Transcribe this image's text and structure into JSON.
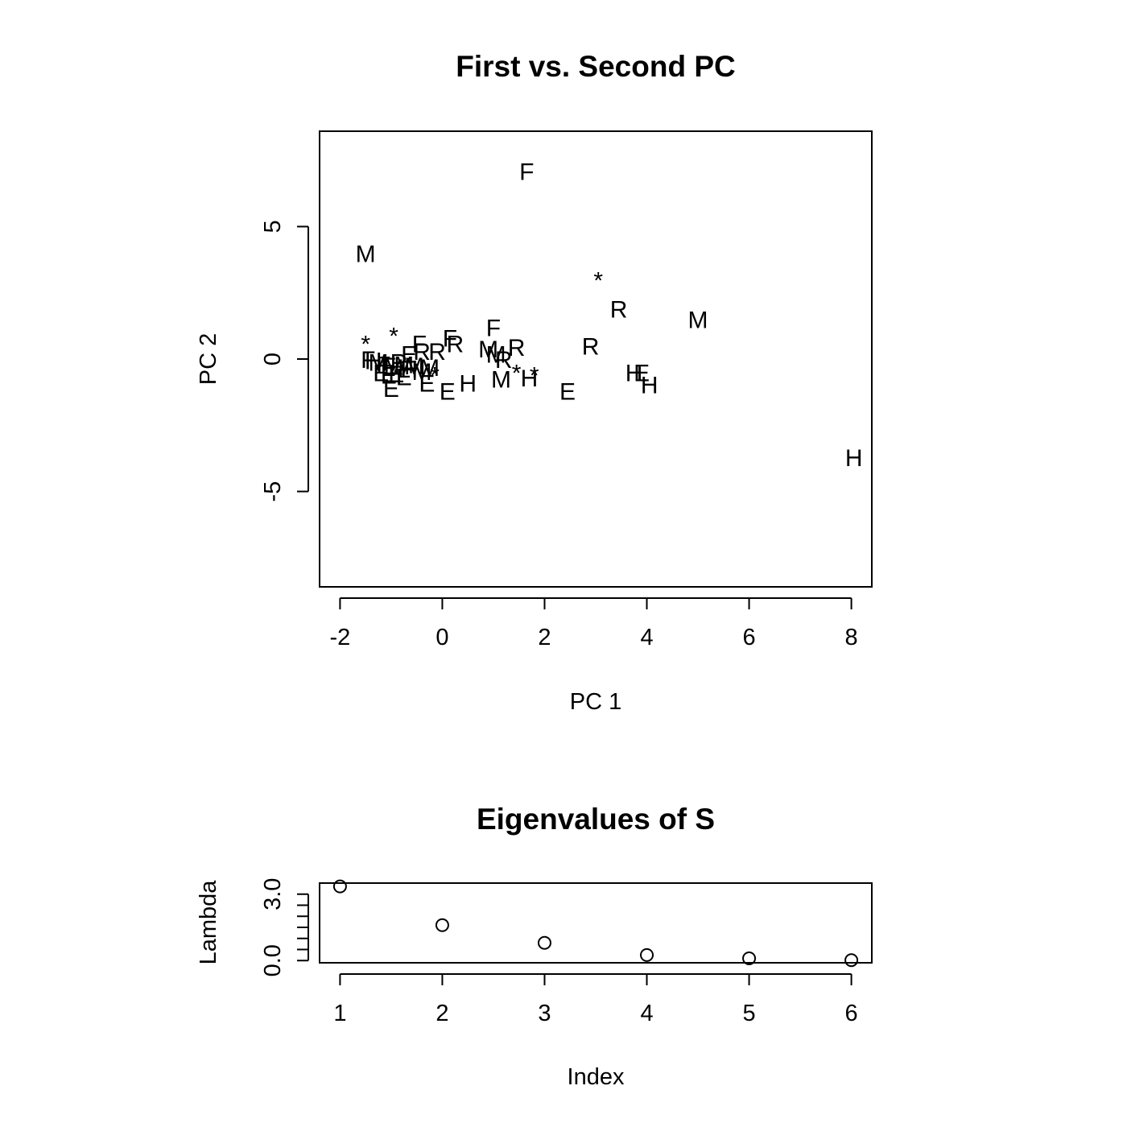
{
  "chart_data": [
    {
      "type": "scatter",
      "title": "First vs. Second PC",
      "xlabel": "PC 1",
      "ylabel": "PC 2",
      "xlim": [
        -2.4,
        8.4
      ],
      "ylim": [
        -8.6,
        8.6
      ],
      "xticks": [
        "-2",
        "0",
        "2",
        "4",
        "6",
        "8"
      ],
      "yticks": [
        "-5",
        "0",
        "5"
      ],
      "grid": false,
      "legend": "none",
      "points": [
        {
          "x": 1.65,
          "y": 7.1,
          "label": "F"
        },
        {
          "x": -1.5,
          "y": 4.0,
          "label": "M"
        },
        {
          "x": 3.05,
          "y": 3.0,
          "label": "*"
        },
        {
          "x": 3.45,
          "y": 1.9,
          "label": "R"
        },
        {
          "x": 5.0,
          "y": 1.5,
          "label": "M"
        },
        {
          "x": 1.0,
          "y": 1.2,
          "label": "F"
        },
        {
          "x": 0.15,
          "y": 0.8,
          "label": "F"
        },
        {
          "x": 0.25,
          "y": 0.6,
          "label": "R"
        },
        {
          "x": -0.45,
          "y": 0.6,
          "label": "F"
        },
        {
          "x": -1.5,
          "y": 0.6,
          "label": "*"
        },
        {
          "x": -0.95,
          "y": 0.9,
          "label": "*"
        },
        {
          "x": -0.1,
          "y": 0.3,
          "label": "R"
        },
        {
          "x": -0.4,
          "y": 0.3,
          "label": "R"
        },
        {
          "x": -0.65,
          "y": 0.2,
          "label": "E"
        },
        {
          "x": 0.9,
          "y": 0.4,
          "label": "M"
        },
        {
          "x": 1.05,
          "y": 0.2,
          "label": "M"
        },
        {
          "x": 1.45,
          "y": 0.45,
          "label": "R"
        },
        {
          "x": 1.2,
          "y": 0.0,
          "label": "R"
        },
        {
          "x": 2.9,
          "y": 0.5,
          "label": "R"
        },
        {
          "x": -1.45,
          "y": 0.0,
          "label": "F"
        },
        {
          "x": -1.35,
          "y": -0.05,
          "label": "H"
        },
        {
          "x": -1.25,
          "y": -0.1,
          "label": "M"
        },
        {
          "x": -1.15,
          "y": -0.2,
          "label": "F"
        },
        {
          "x": -1.05,
          "y": -0.25,
          "label": "E"
        },
        {
          "x": -0.95,
          "y": -0.3,
          "label": "M"
        },
        {
          "x": -0.85,
          "y": -0.1,
          "label": "R"
        },
        {
          "x": -0.75,
          "y": -0.2,
          "label": "M"
        },
        {
          "x": -0.65,
          "y": -0.35,
          "label": "H"
        },
        {
          "x": -0.55,
          "y": -0.25,
          "label": "M"
        },
        {
          "x": -0.4,
          "y": -0.45,
          "label": "M"
        },
        {
          "x": -0.25,
          "y": -0.3,
          "label": "M"
        },
        {
          "x": -1.2,
          "y": -0.5,
          "label": "E"
        },
        {
          "x": -1.05,
          "y": -0.6,
          "label": "E"
        },
        {
          "x": -0.9,
          "y": -0.55,
          "label": "E"
        },
        {
          "x": -0.75,
          "y": -0.65,
          "label": "E"
        },
        {
          "x": -1.0,
          "y": -1.1,
          "label": "E"
        },
        {
          "x": -0.3,
          "y": -0.9,
          "label": "E"
        },
        {
          "x": -0.15,
          "y": -0.6,
          "label": "*"
        },
        {
          "x": 0.1,
          "y": -1.2,
          "label": "E"
        },
        {
          "x": 0.5,
          "y": -0.9,
          "label": "H"
        },
        {
          "x": 1.15,
          "y": -0.75,
          "label": "M"
        },
        {
          "x": 1.45,
          "y": -0.5,
          "label": "*"
        },
        {
          "x": 1.7,
          "y": -0.7,
          "label": "H"
        },
        {
          "x": 1.8,
          "y": -0.6,
          "label": "*"
        },
        {
          "x": 2.45,
          "y": -1.2,
          "label": "E"
        },
        {
          "x": 3.75,
          "y": -0.5,
          "label": "H"
        },
        {
          "x": 3.9,
          "y": -0.5,
          "label": "E"
        },
        {
          "x": 4.05,
          "y": -0.95,
          "label": "H"
        },
        {
          "x": 8.05,
          "y": -3.7,
          "label": "H"
        }
      ]
    },
    {
      "type": "scatter",
      "title": "Eigenvalues of S",
      "xlabel": "Index",
      "ylabel": "Lambda",
      "xlim": [
        0.8,
        6.2
      ],
      "ylim": [
        -0.1,
        3.5
      ],
      "xticks": [
        "1",
        "2",
        "3",
        "4",
        "5",
        "6"
      ],
      "yticks": [
        "0.0",
        "3.0"
      ],
      "ytick_values": [
        0,
        0.5,
        1.0,
        1.5,
        2.0,
        2.5,
        3.0
      ],
      "grid": false,
      "legend": "none",
      "marker": "open-circle",
      "x": [
        1,
        2,
        3,
        4,
        5,
        6
      ],
      "y": [
        3.35,
        1.6,
        0.8,
        0.25,
        0.1,
        0.02
      ]
    }
  ]
}
